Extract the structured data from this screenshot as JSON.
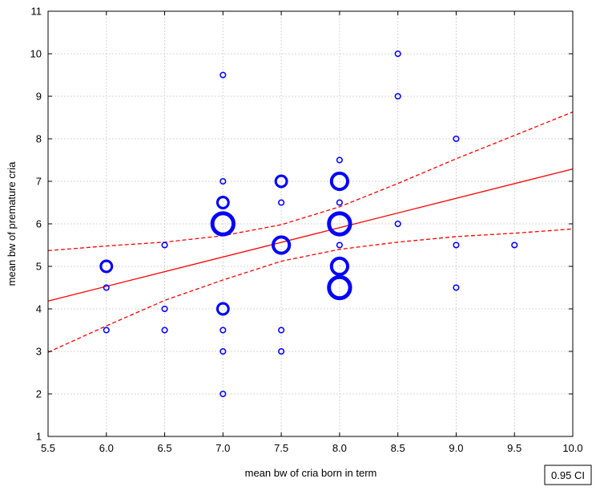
{
  "chart_data": {
    "type": "scatter",
    "title": "",
    "xlabel": "mean bw of cria born in term",
    "ylabel": "mean bw of premature cria",
    "xlim": [
      5.5,
      10.0
    ],
    "ylim": [
      1,
      11
    ],
    "xticks": [
      5.5,
      6.0,
      6.5,
      7.0,
      7.5,
      8.0,
      8.5,
      9.0,
      9.5,
      10.0
    ],
    "xtick_labels": [
      "5.5",
      "6.0",
      "6.5",
      "7.0",
      "7.5",
      "8.0",
      "8.5",
      "9.0",
      "9.5",
      "10.0"
    ],
    "yticks": [
      1,
      2,
      3,
      4,
      5,
      6,
      7,
      8,
      9,
      10,
      11
    ],
    "ytick_labels": [
      "1",
      "2",
      "3",
      "4",
      "5",
      "6",
      "7",
      "8",
      "9",
      "10",
      "11"
    ],
    "grid": true,
    "points": [
      {
        "x": 6.0,
        "y": 5.0,
        "count": 2
      },
      {
        "x": 6.0,
        "y": 4.5,
        "count": 1
      },
      {
        "x": 6.0,
        "y": 3.5,
        "count": 1
      },
      {
        "x": 6.5,
        "y": 5.5,
        "count": 1
      },
      {
        "x": 6.5,
        "y": 4.0,
        "count": 1
      },
      {
        "x": 6.5,
        "y": 3.5,
        "count": 1
      },
      {
        "x": 7.0,
        "y": 9.5,
        "count": 1
      },
      {
        "x": 7.0,
        "y": 7.0,
        "count": 1
      },
      {
        "x": 7.0,
        "y": 6.5,
        "count": 2
      },
      {
        "x": 7.0,
        "y": 6.0,
        "count": 4
      },
      {
        "x": 7.0,
        "y": 4.0,
        "count": 2
      },
      {
        "x": 7.0,
        "y": 3.5,
        "count": 1
      },
      {
        "x": 7.0,
        "y": 3.0,
        "count": 1
      },
      {
        "x": 7.0,
        "y": 2.0,
        "count": 1
      },
      {
        "x": 7.5,
        "y": 7.0,
        "count": 2
      },
      {
        "x": 7.5,
        "y": 6.5,
        "count": 1
      },
      {
        "x": 7.5,
        "y": 5.5,
        "count": 3
      },
      {
        "x": 7.5,
        "y": 3.5,
        "count": 1
      },
      {
        "x": 7.5,
        "y": 3.0,
        "count": 1
      },
      {
        "x": 8.0,
        "y": 7.5,
        "count": 1
      },
      {
        "x": 8.0,
        "y": 7.0,
        "count": 3
      },
      {
        "x": 8.0,
        "y": 6.5,
        "count": 1
      },
      {
        "x": 8.0,
        "y": 6.0,
        "count": 4
      },
      {
        "x": 8.0,
        "y": 5.5,
        "count": 1
      },
      {
        "x": 8.0,
        "y": 5.0,
        "count": 3
      },
      {
        "x": 8.0,
        "y": 4.5,
        "count": 4
      },
      {
        "x": 8.5,
        "y": 10.0,
        "count": 1
      },
      {
        "x": 8.5,
        "y": 9.0,
        "count": 1
      },
      {
        "x": 8.5,
        "y": 6.0,
        "count": 1
      },
      {
        "x": 9.0,
        "y": 8.0,
        "count": 1
      },
      {
        "x": 9.0,
        "y": 5.5,
        "count": 1
      },
      {
        "x": 9.0,
        "y": 4.5,
        "count": 1
      },
      {
        "x": 9.5,
        "y": 5.5,
        "count": 1
      }
    ],
    "regression": {
      "intercept": 0.39,
      "slope": 0.69
    },
    "ci_upper": [
      [
        5.5,
        5.37
      ],
      [
        6.0,
        5.48
      ],
      [
        6.5,
        5.57
      ],
      [
        7.0,
        5.72
      ],
      [
        7.5,
        5.98
      ],
      [
        8.0,
        6.4
      ],
      [
        8.5,
        6.95
      ],
      [
        9.0,
        7.53
      ],
      [
        9.5,
        8.08
      ],
      [
        10.0,
        8.63
      ]
    ],
    "ci_lower": [
      [
        5.5,
        2.98
      ],
      [
        6.0,
        3.6
      ],
      [
        6.5,
        4.2
      ],
      [
        7.0,
        4.68
      ],
      [
        7.5,
        5.12
      ],
      [
        8.0,
        5.4
      ],
      [
        8.5,
        5.57
      ],
      [
        9.0,
        5.7
      ],
      [
        9.5,
        5.78
      ],
      [
        10.0,
        5.88
      ]
    ],
    "legend": {
      "label": "0.95 CI",
      "position": "bottom-right"
    },
    "colors": {
      "points": "#0000ff",
      "line": "#ff0000",
      "grid": "#d4d4d4",
      "axis": "#000000"
    }
  }
}
